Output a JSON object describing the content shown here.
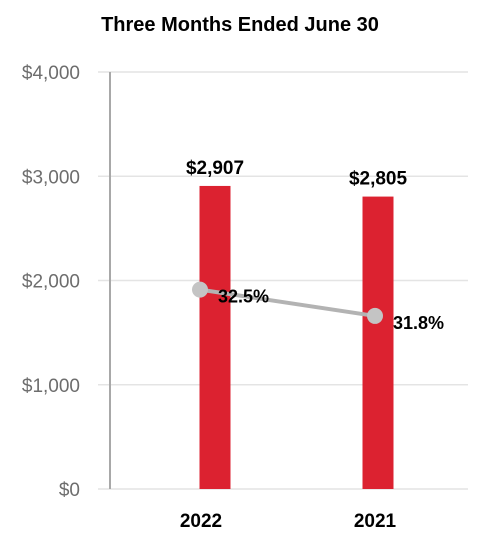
{
  "chart_data": {
    "type": "bar",
    "title": "Three Months Ended June 30",
    "categories": [
      "2022",
      "2021"
    ],
    "series": [
      {
        "values": [
          2907,
          2805
        ],
        "data_labels": [
          "$2,907",
          "$2,805"
        ],
        "color": "#dc2230"
      }
    ],
    "line_series": [
      {
        "values": [
          32.5,
          31.8
        ],
        "data_labels": [
          "32.5%",
          "31.8%"
        ],
        "color": "#b3b3b3",
        "marker": "circle"
      }
    ],
    "ylim": [
      0,
      4000
    ],
    "yticks": [
      0,
      1000,
      2000,
      3000,
      4000
    ],
    "ytick_labels": [
      "$0",
      "$1,000",
      "$2,000",
      "$3,000",
      "$4,000"
    ],
    "xlabel": "",
    "ylabel": "",
    "grid": true,
    "legend": "none"
  }
}
